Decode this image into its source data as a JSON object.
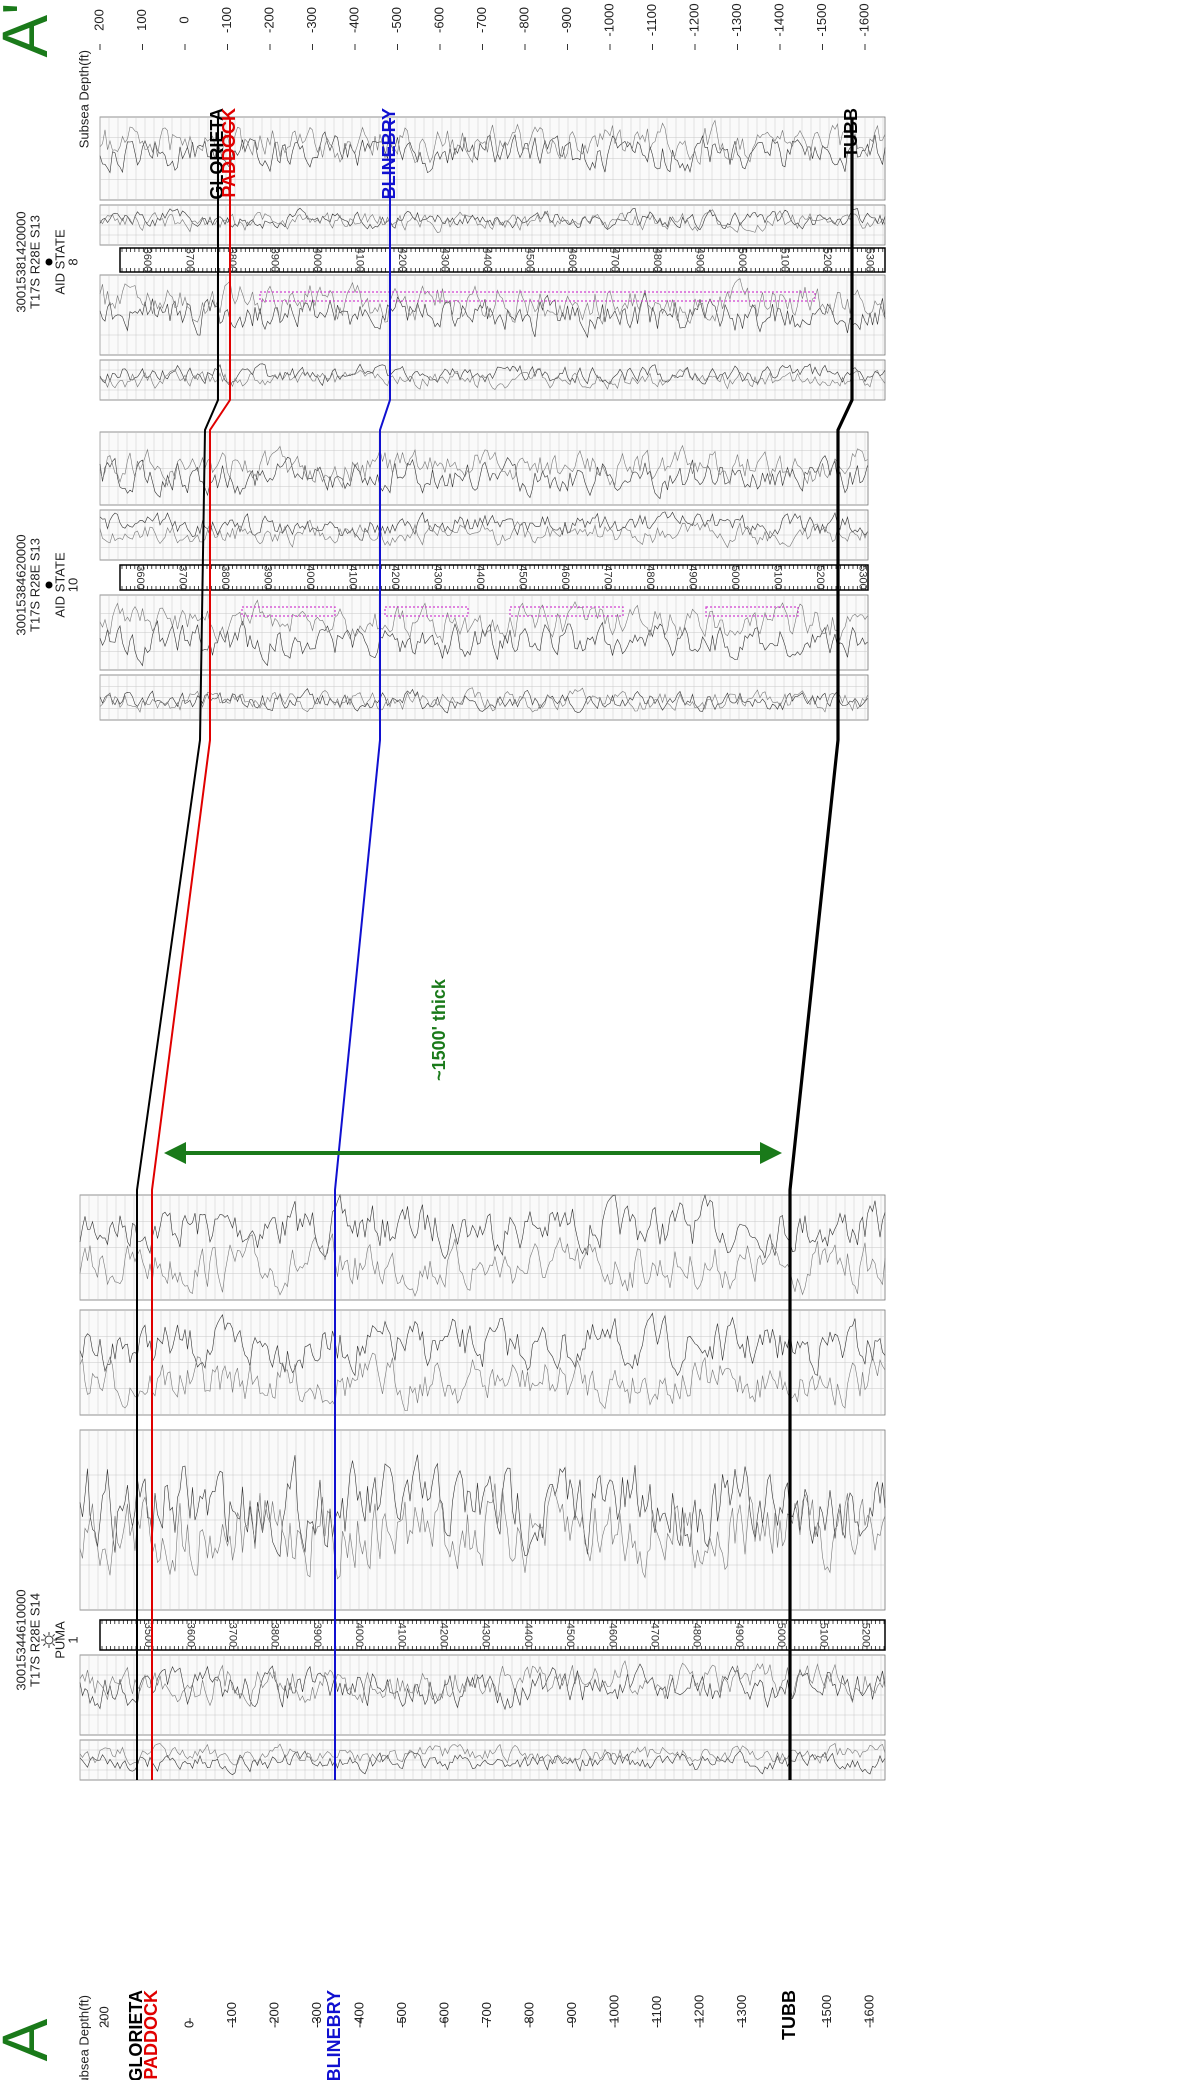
{
  "title_left": "A",
  "title_right": "A'",
  "depth_axis_left": {
    "label": "Subsea Depth(ft)",
    "ticks": [
      200,
      0,
      -100,
      -200,
      -300,
      -400,
      -500,
      -600,
      -700,
      -800,
      -900,
      -1000,
      -1100,
      -1200,
      -1300,
      -1500,
      -1600
    ]
  },
  "depth_axis_right": {
    "label": "Subsea Depth(ft)",
    "ticks": [
      200,
      100,
      0,
      -100,
      -200,
      -300,
      -400,
      -500,
      -600,
      -700,
      -800,
      -900,
      -1000,
      -1100,
      -1200,
      -1300,
      -1400,
      -1500,
      -1600
    ]
  },
  "wells": [
    {
      "api": "30015344610000",
      "location": "T17S R28E S14",
      "name": "PUMA",
      "number": "1",
      "depth_ticks": [
        3500,
        3600,
        3700,
        3800,
        3900,
        4000,
        4100,
        4200,
        4300,
        4400,
        4500,
        4600,
        4700,
        4800,
        4900,
        5000,
        5100,
        5200
      ]
    },
    {
      "api": "30015384620000",
      "location": "T17S R28E S13",
      "name": "AID STATE",
      "number": "10",
      "depth_ticks": [
        3600,
        3700,
        3800,
        3900,
        4000,
        4100,
        4200,
        4300,
        4400,
        4500,
        4600,
        4700,
        4800,
        4900,
        5000,
        5100,
        5200,
        5300
      ]
    },
    {
      "api": "30015381420000",
      "location": "T17S R28E S13",
      "name": "AID STATE",
      "number": "8",
      "depth_ticks": [
        3600,
        3700,
        3800,
        3900,
        4000,
        4100,
        4200,
        4300,
        4400,
        4500,
        4600,
        4700,
        4800,
        4900,
        5000,
        5100,
        5200,
        5300
      ]
    }
  ],
  "formations": [
    {
      "name": "GLORIETA",
      "color": "#000000"
    },
    {
      "name": "PADDOCK",
      "color": "#e00000"
    },
    {
      "name": "BLINEBRY",
      "color": "#1010d0"
    },
    {
      "name": "TUBB",
      "color": "#000000"
    }
  ],
  "annotation": "~1500' thick"
}
